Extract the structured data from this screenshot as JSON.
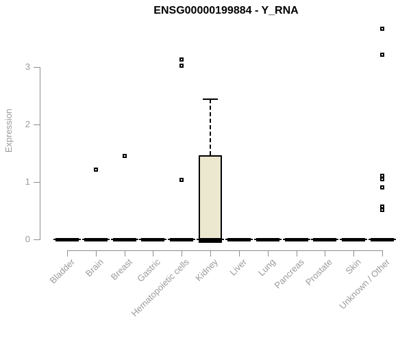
{
  "title": "ENSG00000199884 - Y_RNA",
  "colors": {
    "box_fill": "#ece8d0",
    "box_border": "#000000",
    "axis_line": "#8c8c8c",
    "axis_text": "#9a9a9a",
    "title_text": "#000000"
  },
  "chart_data": {
    "type": "boxplot",
    "title": "ENSG00000199884 - Y_RNA",
    "xlabel": "",
    "ylabel": "Expression",
    "ylim": [
      0,
      3.8
    ],
    "yticks": [
      0,
      1,
      2,
      3
    ],
    "grid": "off",
    "legend": "none",
    "categories": [
      "Bladder",
      "Brain",
      "Breast",
      "Gastric",
      "Hematopoietic cells",
      "Kidney",
      "Liver",
      "Lung",
      "Pancreas",
      "Prostate",
      "Skin",
      "Unknown / Other"
    ],
    "boxes": [
      {
        "category": "Bladder",
        "q1": 0,
        "median": 0,
        "q3": 0,
        "whisker_low": 0,
        "whisker_high": 0,
        "outliers": []
      },
      {
        "category": "Brain",
        "q1": 0,
        "median": 0,
        "q3": 0,
        "whisker_low": 0,
        "whisker_high": 0,
        "outliers": [
          1.22
        ]
      },
      {
        "category": "Breast",
        "q1": 0,
        "median": 0,
        "q3": 0,
        "whisker_low": 0,
        "whisker_high": 0,
        "outliers": [
          1.45
        ]
      },
      {
        "category": "Gastric",
        "q1": 0,
        "median": 0,
        "q3": 0,
        "whisker_low": 0,
        "whisker_high": 0,
        "outliers": []
      },
      {
        "category": "Hematopoietic cells",
        "q1": 0,
        "median": 0,
        "q3": 0,
        "whisker_low": 0,
        "whisker_high": 0,
        "outliers": [
          3.13,
          3.02,
          1.03
        ]
      },
      {
        "category": "Kidney",
        "q1": 0,
        "median": 0,
        "q3": 1.46,
        "whisker_low": 0,
        "whisker_high": 2.44,
        "outliers": []
      },
      {
        "category": "Liver",
        "q1": 0,
        "median": 0,
        "q3": 0,
        "whisker_low": 0,
        "whisker_high": 0,
        "outliers": []
      },
      {
        "category": "Lung",
        "q1": 0,
        "median": 0,
        "q3": 0,
        "whisker_low": 0,
        "whisker_high": 0,
        "outliers": []
      },
      {
        "category": "Pancreas",
        "q1": 0,
        "median": 0,
        "q3": 0,
        "whisker_low": 0,
        "whisker_high": 0,
        "outliers": []
      },
      {
        "category": "Prostate",
        "q1": 0,
        "median": 0,
        "q3": 0,
        "whisker_low": 0,
        "whisker_high": 0,
        "outliers": []
      },
      {
        "category": "Skin",
        "q1": 0,
        "median": 0,
        "q3": 0,
        "whisker_low": 0,
        "whisker_high": 0,
        "outliers": []
      },
      {
        "category": "Unknown / Other",
        "q1": 0,
        "median": 0,
        "q3": 0,
        "whisker_low": 0,
        "whisker_high": 0,
        "outliers": [
          3.67,
          3.21,
          1.11,
          1.05,
          0.9,
          0.57,
          0.51
        ]
      }
    ]
  }
}
